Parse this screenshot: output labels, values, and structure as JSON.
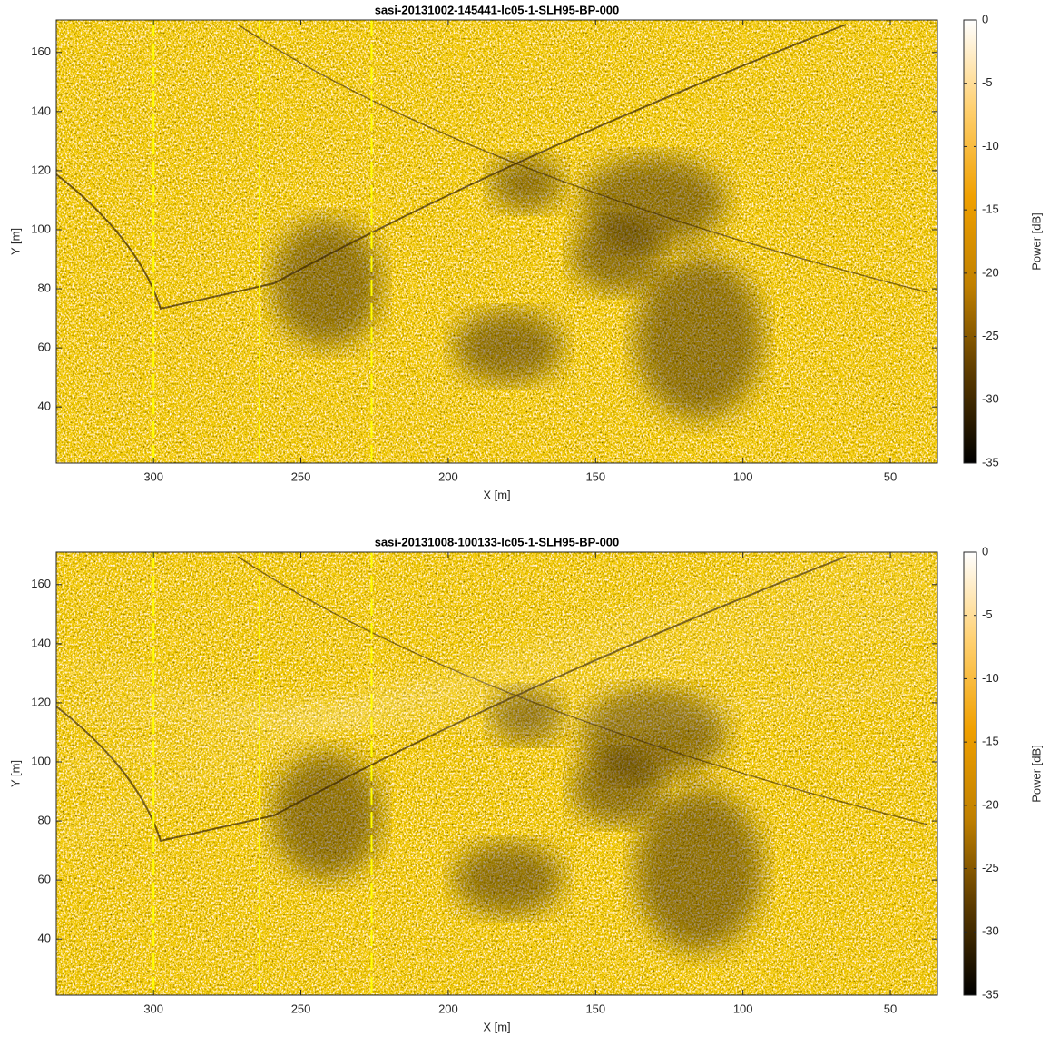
{
  "chart_data": [
    {
      "type": "image",
      "title": "sasi-20131002-145441-lc05-1-SLH95-BP-000",
      "xlabel": "X [m]",
      "ylabel": "Y [m]",
      "xlim": [
        333,
        34
      ],
      "ylim": [
        21,
        171
      ],
      "xticks": [
        300,
        250,
        200,
        150,
        100,
        50
      ],
      "yticks": [
        40,
        60,
        80,
        100,
        120,
        140,
        160
      ],
      "vlines": {
        "x": [
          300,
          264,
          226
        ],
        "color": "#ffff00"
      },
      "colorbar": {
        "label": "Power [dB]",
        "lim": [
          -35,
          0
        ],
        "ticks": [
          0,
          -5,
          -10,
          -15,
          -20,
          -25,
          -30,
          -35
        ],
        "colormap": [
          "#000000",
          "#5a3a00",
          "#c08000",
          "#f0a000",
          "#ffd070",
          "#ffffff"
        ]
      }
    },
    {
      "type": "image",
      "title": "sasi-20131008-100133-lc05-1-SLH95-BP-000",
      "xlabel": "X [m]",
      "ylabel": "Y [m]",
      "xlim": [
        333,
        34
      ],
      "ylim": [
        21,
        171
      ],
      "xticks": [
        300,
        250,
        200,
        150,
        100,
        50
      ],
      "yticks": [
        40,
        60,
        80,
        100,
        120,
        140,
        160
      ],
      "vlines": {
        "x": [
          300,
          264,
          226
        ],
        "color": "#ffff00"
      },
      "colorbar": {
        "label": "Power [dB]",
        "lim": [
          -35,
          0
        ],
        "ticks": [
          0,
          -5,
          -10,
          -15,
          -20,
          -25,
          -30,
          -35
        ],
        "colormap": [
          "#000000",
          "#5a3a00",
          "#c08000",
          "#f0a000",
          "#ffd070",
          "#ffffff"
        ]
      }
    }
  ]
}
